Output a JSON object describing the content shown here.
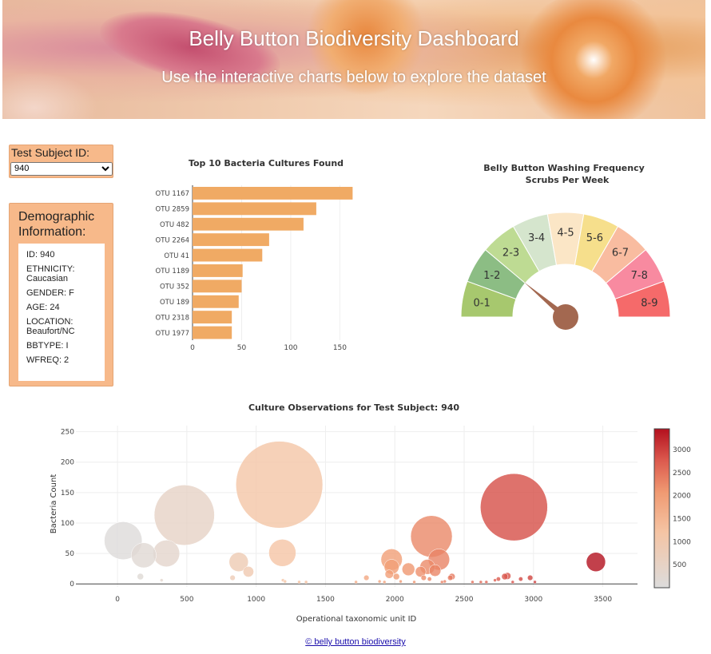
{
  "header": {
    "title": "Belly Button Biodiversity Dashboard",
    "subtitle": "Use the interactive charts below to explore the dataset"
  },
  "selector": {
    "label": "Test Subject ID:",
    "selected": "940"
  },
  "demographics": {
    "title": "Demographic Information:",
    "lines": [
      "ID: 940",
      "ETHNICITY: Caucasian",
      "GENDER: F",
      "AGE: 24",
      "LOCATION: Beaufort/NC",
      "BBTYPE: I",
      "WFREQ: 2"
    ]
  },
  "colors": {
    "bar": "#f0aa64",
    "panel": "#f7b98a",
    "needle": "#a36850"
  },
  "chart_data": [
    {
      "type": "bar",
      "orientation": "horizontal",
      "title": "Top 10 Bacteria Cultures Found",
      "categories": [
        "OTU 1167",
        "OTU 2859",
        "OTU 482",
        "OTU 2264",
        "OTU 41",
        "OTU 1189",
        "OTU 352",
        "OTU 189",
        "OTU 2318",
        "OTU 1977"
      ],
      "values": [
        163,
        126,
        113,
        78,
        71,
        51,
        50,
        47,
        40,
        40
      ],
      "xlim": [
        0,
        170
      ],
      "xticks": [
        0,
        50,
        100,
        150
      ]
    },
    {
      "type": "gauge",
      "title": "Belly Button Washing Frequency",
      "subtitle": "Scrubs Per Week",
      "segments": [
        {
          "label": "0-1",
          "color": "#a7c86e"
        },
        {
          "label": "1-2",
          "color": "#8cbd84"
        },
        {
          "label": "2-3",
          "color": "#bedb93"
        },
        {
          "label": "3-4",
          "color": "#d5e5cd"
        },
        {
          "label": "4-5",
          "color": "#fbe6c6"
        },
        {
          "label": "5-6",
          "color": "#f6df8c"
        },
        {
          "label": "6-7",
          "color": "#f9bca0"
        },
        {
          "label": "7-8",
          "color": "#f88aa0"
        },
        {
          "label": "8-9",
          "color": "#f56a6a"
        }
      ],
      "value": 2,
      "range": [
        0,
        9
      ]
    },
    {
      "type": "scatter",
      "title": "Culture Observations for Test Subject: 940",
      "xlabel": "Operational taxonomic unit ID",
      "ylabel": "Bacteria Count",
      "xlim": [
        -300,
        3750
      ],
      "ylim": [
        -5,
        260
      ],
      "xticks": [
        0,
        500,
        1000,
        1500,
        2000,
        2500,
        3000,
        3500
      ],
      "yticks": [
        0,
        50,
        100,
        150,
        200,
        250
      ],
      "colorbar_ticks": [
        500,
        1000,
        1500,
        2000,
        2500,
        3000
      ],
      "colorbar_range": [
        0,
        3450
      ],
      "points": [
        {
          "x": 41,
          "y": 71,
          "size": 71
        },
        {
          "x": 189,
          "y": 47,
          "size": 47
        },
        {
          "x": 352,
          "y": 50,
          "size": 50
        },
        {
          "x": 482,
          "y": 113,
          "size": 113
        },
        {
          "x": 1167,
          "y": 163,
          "size": 163
        },
        {
          "x": 1189,
          "y": 51,
          "size": 51
        },
        {
          "x": 2859,
          "y": 126,
          "size": 126
        },
        {
          "x": 2264,
          "y": 78,
          "size": 78
        },
        {
          "x": 2318,
          "y": 40,
          "size": 40
        },
        {
          "x": 1977,
          "y": 40,
          "size": 40
        },
        {
          "x": 3450,
          "y": 36,
          "size": 36
        },
        {
          "x": 874,
          "y": 36,
          "size": 36
        },
        {
          "x": 944,
          "y": 20,
          "size": 20
        },
        {
          "x": 1977,
          "y": 28,
          "size": 28
        },
        {
          "x": 2098,
          "y": 24,
          "size": 24
        },
        {
          "x": 2235,
          "y": 28,
          "size": 28
        },
        {
          "x": 2186,
          "y": 20,
          "size": 20
        },
        {
          "x": 2290,
          "y": 22,
          "size": 22
        },
        {
          "x": 1960,
          "y": 16,
          "size": 16
        },
        {
          "x": 2011,
          "y": 12,
          "size": 12
        },
        {
          "x": 2208,
          "y": 10,
          "size": 10
        },
        {
          "x": 1795,
          "y": 10,
          "size": 10
        },
        {
          "x": 2412,
          "y": 12,
          "size": 12
        },
        {
          "x": 2400,
          "y": 10,
          "size": 10
        },
        {
          "x": 2250,
          "y": 8,
          "size": 8
        },
        {
          "x": 2793,
          "y": 12,
          "size": 12
        },
        {
          "x": 2812,
          "y": 13,
          "size": 13
        },
        {
          "x": 2976,
          "y": 10,
          "size": 10
        },
        {
          "x": 2908,
          "y": 8,
          "size": 8
        },
        {
          "x": 2747,
          "y": 8,
          "size": 8
        },
        {
          "x": 2722,
          "y": 6,
          "size": 6
        },
        {
          "x": 165,
          "y": 12,
          "size": 12
        },
        {
          "x": 318,
          "y": 6,
          "size": 6
        },
        {
          "x": 830,
          "y": 10,
          "size": 10
        },
        {
          "x": 1193,
          "y": 6,
          "size": 6
        },
        {
          "x": 1208,
          "y": 4,
          "size": 4
        },
        {
          "x": 1310,
          "y": 3,
          "size": 3
        },
        {
          "x": 1360,
          "y": 3,
          "size": 3
        },
        {
          "x": 1720,
          "y": 3,
          "size": 3
        },
        {
          "x": 1890,
          "y": 4,
          "size": 4
        },
        {
          "x": 1925,
          "y": 3,
          "size": 3
        },
        {
          "x": 2042,
          "y": 4,
          "size": 4
        },
        {
          "x": 2140,
          "y": 3,
          "size": 3
        },
        {
          "x": 2340,
          "y": 3,
          "size": 3
        },
        {
          "x": 2360,
          "y": 4,
          "size": 4
        },
        {
          "x": 2560,
          "y": 3,
          "size": 3
        },
        {
          "x": 2620,
          "y": 3,
          "size": 3
        },
        {
          "x": 2660,
          "y": 3,
          "size": 3
        },
        {
          "x": 2850,
          "y": 3,
          "size": 3
        },
        {
          "x": 3010,
          "y": 3,
          "size": 3
        }
      ]
    }
  ],
  "footer": {
    "link": "© belly button biodiversity"
  }
}
